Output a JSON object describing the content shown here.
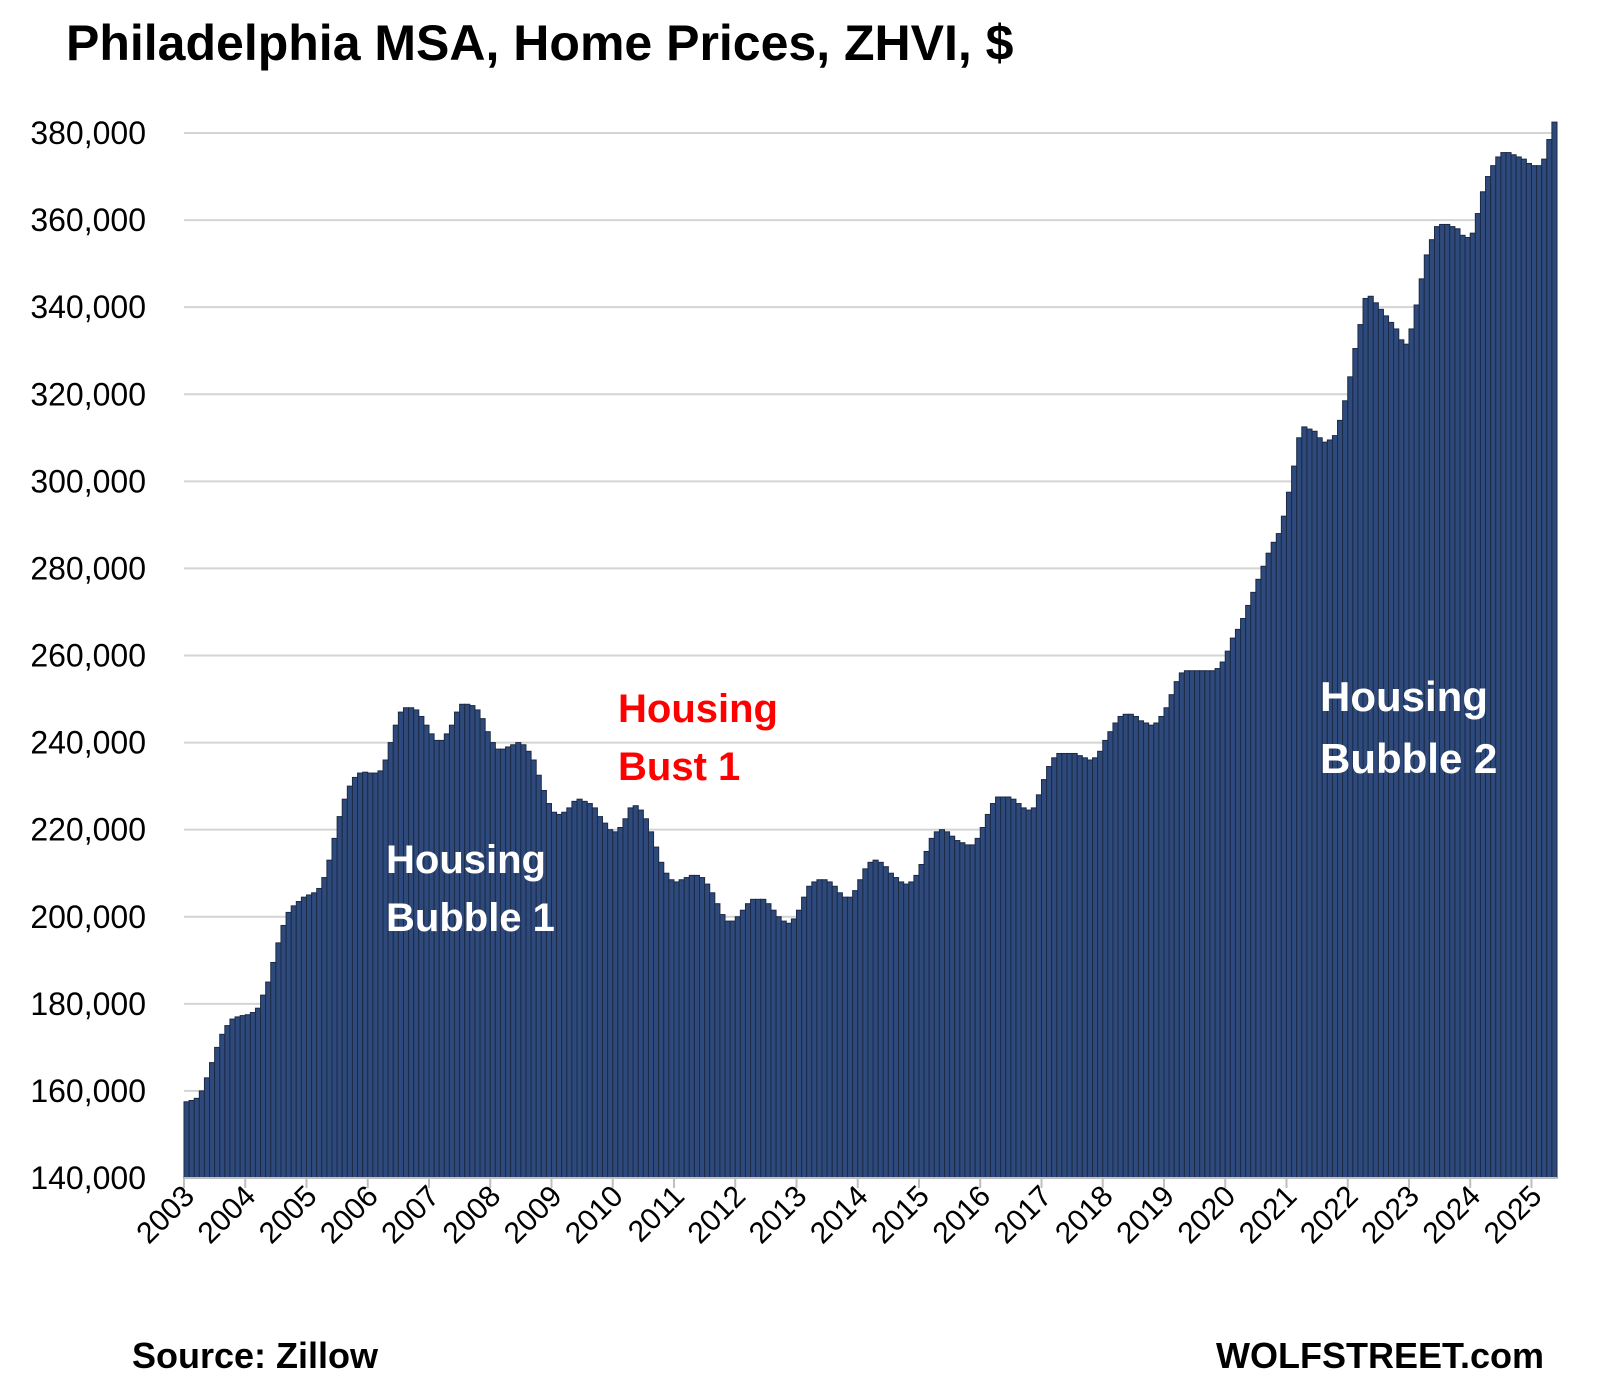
{
  "chart_data": {
    "type": "bar",
    "title": "Philadelphia MSA, Home Prices, ZHVI, $",
    "xlabel": "",
    "ylabel": "",
    "ylim": [
      140000,
      380000
    ],
    "yticks": [
      140000,
      160000,
      180000,
      200000,
      220000,
      240000,
      260000,
      280000,
      300000,
      320000,
      340000,
      360000,
      380000
    ],
    "ytick_labels": [
      "140,000",
      "160,000",
      "180,000",
      "200,000",
      "220,000",
      "240,000",
      "260,000",
      "280,000",
      "300,000",
      "320,000",
      "340,000",
      "360,000",
      "380,000"
    ],
    "xtick_labels": [
      "2003",
      "2004",
      "2005",
      "2006",
      "2007",
      "2008",
      "2009",
      "2010",
      "2011",
      "2012",
      "2013",
      "2014",
      "2015",
      "2016",
      "2017",
      "2018",
      "2019",
      "2020",
      "2021",
      "2022",
      "2023",
      "2024",
      "2025"
    ],
    "grid": true,
    "legend": "none",
    "bar_color": "#2e4a7d",
    "bar_edge_color": "#1c2a44",
    "frequency": "monthly",
    "start": "2003-01",
    "series": [
      {
        "values": [
          157500,
          157800,
          158300,
          160000,
          163000,
          166500,
          170000,
          173000,
          175000,
          176500,
          177000,
          177300,
          177500,
          178000,
          179000,
          182000,
          185000,
          189500,
          194000,
          198000,
          201000,
          202500,
          203500,
          204500,
          205000,
          205500,
          206500,
          209000,
          213000,
          218000,
          223000,
          227000,
          230000,
          232000,
          233000,
          233200,
          233000,
          233000,
          233500,
          236000,
          240000,
          244000,
          247000,
          248000,
          248000,
          247500,
          246000,
          244000,
          242000,
          240500,
          240500,
          242000,
          244000,
          247000,
          248800,
          248800,
          248500,
          247500,
          245500,
          242500,
          240000,
          238500,
          238500,
          239000,
          239500,
          240000,
          239500,
          238000,
          236000,
          232500,
          229000,
          226000,
          224000,
          223500,
          224000,
          225000,
          226500,
          227000,
          226500,
          226000,
          225000,
          223000,
          221500,
          220000,
          219500,
          220500,
          222500,
          225000,
          225500,
          224500,
          222500,
          219500,
          216000,
          212500,
          210000,
          208500,
          208000,
          208500,
          209000,
          209500,
          209500,
          209000,
          207500,
          205500,
          203000,
          200500,
          199000,
          199000,
          200000,
          201500,
          203000,
          204000,
          204000,
          204000,
          203000,
          201500,
          200000,
          199000,
          198500,
          199500,
          201500,
          204500,
          207000,
          208000,
          208500,
          208500,
          208000,
          207000,
          205500,
          204500,
          204500,
          206000,
          208500,
          211000,
          212500,
          213000,
          212500,
          211500,
          210000,
          209000,
          208000,
          207500,
          208000,
          209500,
          212000,
          215000,
          218000,
          219500,
          220000,
          219500,
          218500,
          217500,
          217000,
          216500,
          216500,
          218000,
          220500,
          223500,
          226000,
          227500,
          227500,
          227500,
          227000,
          226000,
          225000,
          224500,
          225000,
          228000,
          231500,
          234500,
          236500,
          237500,
          237500,
          237500,
          237500,
          237000,
          236500,
          236000,
          236500,
          238000,
          240500,
          242500,
          244500,
          246000,
          246500,
          246500,
          246000,
          245000,
          244500,
          244000,
          244500,
          246000,
          248000,
          251000,
          254000,
          256000,
          256500,
          256500,
          256500,
          256500,
          256500,
          256500,
          257000,
          258500,
          261000,
          264000,
          266000,
          268500,
          271500,
          274500,
          277500,
          280500,
          283500,
          286000,
          288000,
          292000,
          297500,
          303500,
          310000,
          312500,
          312000,
          311500,
          310000,
          309000,
          309500,
          310500,
          314000,
          318500,
          324000,
          330500,
          336000,
          342000,
          342500,
          341000,
          339500,
          338000,
          336500,
          335000,
          332500,
          331500,
          335000,
          340500,
          346500,
          352000,
          355500,
          358500,
          359000,
          359000,
          358500,
          358000,
          356500,
          356000,
          357000,
          361500,
          366500,
          370000,
          372500,
          374500,
          375500,
          375500,
          375000,
          374500,
          374000,
          373000,
          372500,
          372500,
          374000,
          378500,
          382500
        ]
      }
    ]
  },
  "annotations": {
    "bubble1": [
      "Housing",
      "Bubble 1"
    ],
    "bust1": [
      "Housing",
      "Bust 1"
    ],
    "bubble2": [
      "Housing",
      "Bubble 2"
    ]
  },
  "footer": {
    "source": "Source: Zillow",
    "brand": "WOLFSTREET.com"
  }
}
